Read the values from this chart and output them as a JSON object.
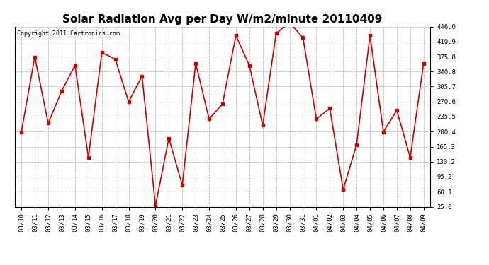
{
  "title": "Solar Radiation Avg per Day W/m2/minute 20110409",
  "copyright": "Copyright 2011 Cartronics.com",
  "dates": [
    "03/10",
    "03/11",
    "03/12",
    "03/13",
    "03/14",
    "03/15",
    "03/16",
    "03/17",
    "03/18",
    "03/19",
    "03/20",
    "03/21",
    "03/22",
    "03/23",
    "03/24",
    "03/25",
    "03/26",
    "03/27",
    "03/28",
    "03/29",
    "03/30",
    "03/31",
    "04/01",
    "04/02",
    "04/03",
    "04/04",
    "04/05",
    "04/06",
    "04/07",
    "04/08",
    "04/09"
  ],
  "values": [
    200,
    375,
    220,
    295,
    355,
    140,
    385,
    370,
    270,
    330,
    27,
    185,
    75,
    360,
    230,
    265,
    425,
    355,
    215,
    430,
    455,
    420,
    230,
    255,
    65,
    170,
    425,
    200,
    250,
    140,
    360
  ],
  "line_color": "#cc0000",
  "marker_color": "#cc0000",
  "bg_color": "#ffffff",
  "plot_bg_color": "#ffffff",
  "grid_color": "#bbbbbb",
  "ymin": 25.0,
  "ymax": 446.0,
  "yticks": [
    25.0,
    60.1,
    95.2,
    130.2,
    165.3,
    200.4,
    235.5,
    270.6,
    305.7,
    340.8,
    375.8,
    410.9,
    446.0
  ],
  "title_fontsize": 11,
  "tick_fontsize": 6.5,
  "copyright_fontsize": 6
}
